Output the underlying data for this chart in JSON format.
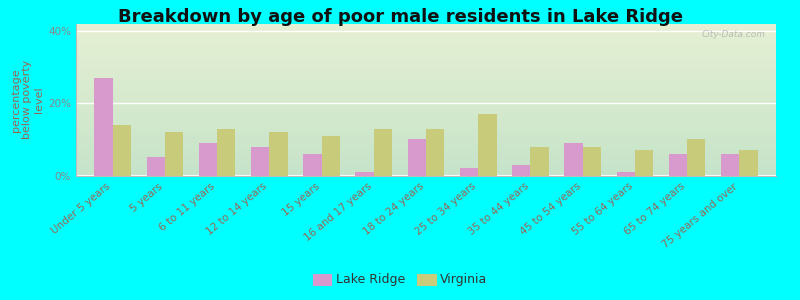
{
  "title": "Breakdown by age of poor male residents in Lake Ridge",
  "ylabel": "percentage\nbelow poverty\nlevel",
  "categories": [
    "Under 5 years",
    "5 years",
    "6 to 11 years",
    "12 to 14 years",
    "15 years",
    "16 and 17 years",
    "18 to 24 years",
    "25 to 34 years",
    "35 to 44 years",
    "45 to 54 years",
    "55 to 64 years",
    "65 to 74 years",
    "75 years and over"
  ],
  "lake_ridge": [
    27,
    5,
    9,
    8,
    6,
    1,
    10,
    2,
    3,
    9,
    1,
    6,
    6
  ],
  "virginia": [
    14,
    12,
    13,
    12,
    11,
    13,
    13,
    17,
    8,
    8,
    7,
    10,
    7
  ],
  "ylim": [
    0,
    42
  ],
  "ytick_labels": [
    "0%",
    "20%",
    "40%"
  ],
  "ytick_vals": [
    0,
    20,
    40
  ],
  "bar_color_lr": "#d899cc",
  "bar_color_va": "#c8cc7a",
  "outer_bg": "#00ffff",
  "legend_lr": "Lake Ridge",
  "legend_va": "Virginia",
  "watermark": "City-Data.com",
  "title_fontsize": 13,
  "ylabel_fontsize": 8,
  "tick_fontsize": 7.5,
  "label_color": "#996655",
  "ytick_color": "#888888",
  "bar_width": 0.35
}
